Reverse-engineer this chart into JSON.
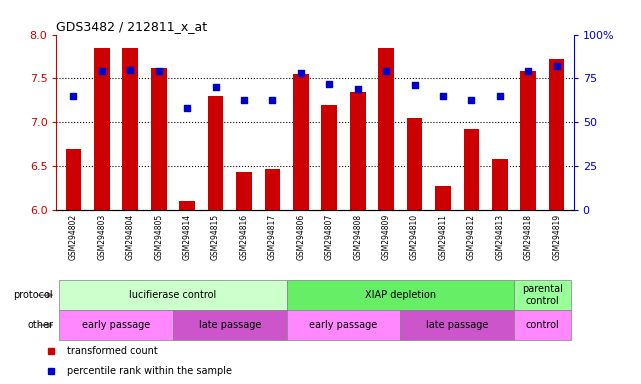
{
  "title": "GDS3482 / 212811_x_at",
  "samples": [
    "GSM294802",
    "GSM294803",
    "GSM294804",
    "GSM294805",
    "GSM294814",
    "GSM294815",
    "GSM294816",
    "GSM294817",
    "GSM294806",
    "GSM294807",
    "GSM294808",
    "GSM294809",
    "GSM294810",
    "GSM294811",
    "GSM294812",
    "GSM294813",
    "GSM294818",
    "GSM294819"
  ],
  "transformed_count": [
    6.7,
    7.85,
    7.85,
    7.62,
    6.1,
    7.3,
    6.43,
    6.47,
    7.55,
    7.2,
    7.35,
    7.85,
    7.05,
    6.27,
    6.92,
    6.58,
    7.58,
    7.72
  ],
  "percentile_rank": [
    65,
    79,
    80,
    79,
    58,
    70,
    63,
    63,
    78,
    72,
    69,
    79,
    71,
    65,
    63,
    65,
    79,
    82
  ],
  "bar_color": "#cc0000",
  "dot_color": "#0000cc",
  "ylim_left": [
    6.0,
    8.0
  ],
  "ylim_right": [
    0,
    100
  ],
  "yticks_left": [
    6.0,
    6.5,
    7.0,
    7.5,
    8.0
  ],
  "yticks_right": [
    0,
    25,
    50,
    75,
    100
  ],
  "ytick_labels_right": [
    "0",
    "25",
    "50",
    "75",
    "100%"
  ],
  "hline_y": [
    6.5,
    7.0,
    7.5
  ],
  "protocol_groups": [
    {
      "label": "lucifierase control",
      "start": 0,
      "end": 8,
      "color": "#ccffcc"
    },
    {
      "label": "XIAP depletion",
      "start": 8,
      "end": 16,
      "color": "#66ee66"
    },
    {
      "label": "parental\ncontrol",
      "start": 16,
      "end": 18,
      "color": "#99ff99"
    }
  ],
  "other_groups": [
    {
      "label": "early passage",
      "start": 0,
      "end": 4,
      "color": "#ff88ff"
    },
    {
      "label": "late passage",
      "start": 4,
      "end": 8,
      "color": "#cc55cc"
    },
    {
      "label": "early passage",
      "start": 8,
      "end": 12,
      "color": "#ff88ff"
    },
    {
      "label": "late passage",
      "start": 12,
      "end": 16,
      "color": "#cc55cc"
    },
    {
      "label": "control",
      "start": 16,
      "end": 18,
      "color": "#ff88ff"
    }
  ],
  "legend_items": [
    {
      "label": "transformed count",
      "color": "#cc0000"
    },
    {
      "label": "percentile rank within the sample",
      "color": "#0000cc"
    }
  ],
  "left_label_color": "#cc0000",
  "right_label_color": "#0000cc",
  "tick_label_bg": "#dddddd"
}
